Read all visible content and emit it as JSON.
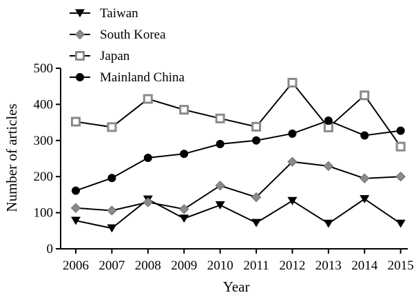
{
  "chart_data": {
    "type": "line",
    "title": "",
    "xlabel": "Year",
    "ylabel": "Number of articles",
    "ylim": [
      0,
      500
    ],
    "yticks": [
      0,
      100,
      200,
      300,
      400,
      500
    ],
    "categories": [
      "2006",
      "2007",
      "2008",
      "2009",
      "2010",
      "2011",
      "2012",
      "2013",
      "2014",
      "2015"
    ],
    "grid": false,
    "legend_position": "top-left",
    "series": [
      {
        "name": "Taiwan",
        "marker": "triangle-down",
        "color": "#000000",
        "values": [
          78,
          57,
          137,
          84,
          121,
          72,
          133,
          70,
          138,
          70
        ]
      },
      {
        "name": "South Korea",
        "marker": "diamond",
        "color": "#808080",
        "values": [
          113,
          106,
          129,
          110,
          175,
          143,
          241,
          229,
          195,
          200
        ]
      },
      {
        "name": "Japan",
        "marker": "square-open",
        "color": "#808080",
        "values": [
          352,
          337,
          415,
          385,
          361,
          338,
          460,
          336,
          425,
          283
        ]
      },
      {
        "name": "Mainland China",
        "marker": "circle",
        "color": "#000000",
        "values": [
          161,
          196,
          252,
          263,
          290,
          300,
          319,
          355,
          314,
          327
        ]
      }
    ]
  }
}
